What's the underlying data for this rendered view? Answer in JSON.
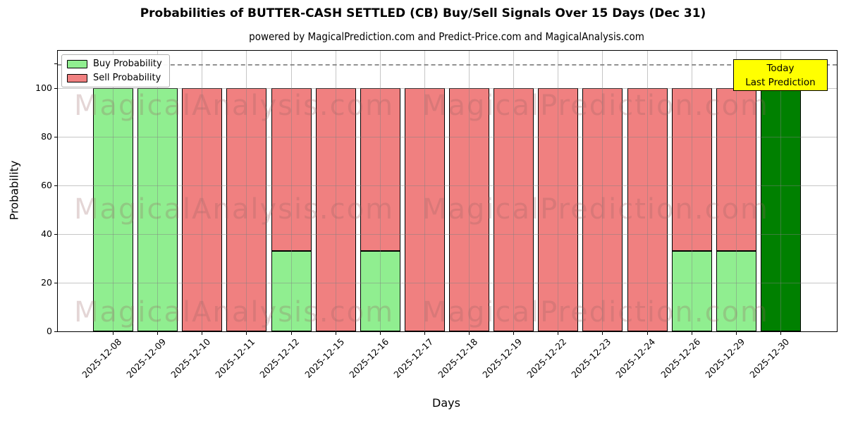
{
  "chart_data": {
    "type": "bar",
    "title": "Probabilities of BUTTER-CASH SETTLED (CB) Buy/Sell Signals Over 15 Days (Dec 31)",
    "subtitle": "powered by MagicalPrediction.com and Predict-Price.com and MagicalAnalysis.com",
    "xlabel": "Days",
    "ylabel": "Probability",
    "ylim": [
      0,
      115.5
    ],
    "yticks": [
      0,
      20,
      40,
      60,
      80,
      100
    ],
    "grid": true,
    "threshold_line": {
      "y": 110,
      "style": "dashed",
      "color": "#7f7f7f"
    },
    "categories": [
      "2025-12-08",
      "2025-12-09",
      "2025-12-10",
      "2025-12-11",
      "2025-12-12",
      "2025-12-15",
      "2025-12-16",
      "2025-12-17",
      "2025-12-18",
      "2025-12-19",
      "2025-12-22",
      "2025-12-23",
      "2025-12-24",
      "2025-12-26",
      "2025-12-29",
      "2025-12-30"
    ],
    "series": [
      {
        "name": "Buy Probability",
        "color": "#90ee90",
        "values": [
          100,
          100,
          0,
          0,
          33,
          0,
          33,
          0,
          0,
          0,
          0,
          0,
          0,
          33,
          33,
          0
        ]
      },
      {
        "name": "Sell Probability",
        "color": "#f08080",
        "values": [
          0,
          0,
          100,
          100,
          67,
          100,
          67,
          100,
          100,
          100,
          100,
          100,
          100,
          67,
          67,
          0
        ]
      },
      {
        "name": "Today Prediction",
        "color": "#008000",
        "values": [
          0,
          0,
          0,
          0,
          0,
          0,
          0,
          0,
          0,
          0,
          0,
          0,
          0,
          0,
          0,
          100
        ]
      }
    ],
    "legend": {
      "position": "upper-left",
      "entries": [
        {
          "label": "Buy Probability",
          "color": "#90ee90"
        },
        {
          "label": "Sell Probability",
          "color": "#f08080"
        }
      ]
    },
    "annotation": {
      "lines": [
        "Today",
        "Last Prediction"
      ],
      "bg_color": "#ffff00"
    },
    "watermarks": [
      "MagicalAnalysis.com",
      "MagicalPrediction.com"
    ],
    "colors": {
      "bar_edge": "#000000",
      "grid": "#b3b3b3",
      "background": "#ffffff"
    }
  }
}
